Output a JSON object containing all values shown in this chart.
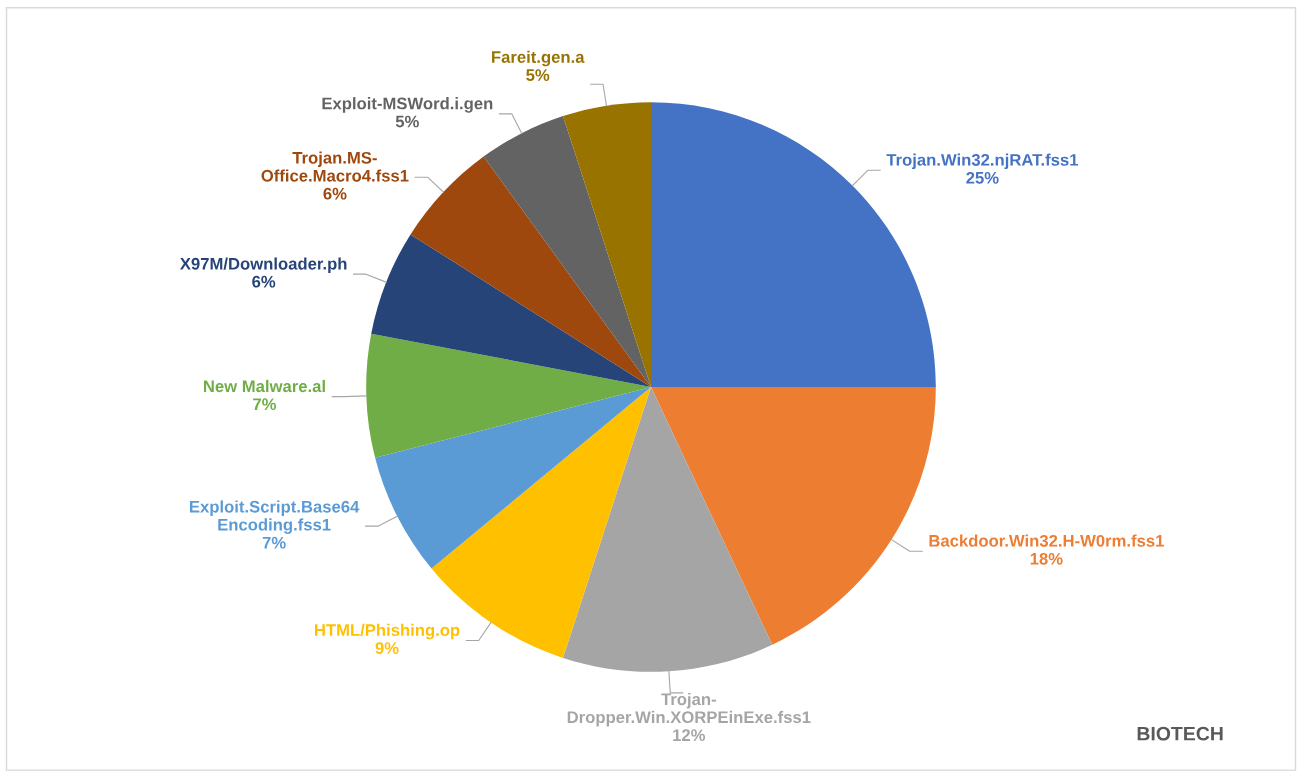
{
  "chart_data": {
    "type": "pie",
    "categories": [
      "Trojan.Win32.njRAT.fss1",
      "Backdoor.Win32.H-W0rm.fss1",
      "Trojan-\nDropper.Win.XORPEinExe.fss1",
      "HTML/Phishing.op",
      "Exploit.Script.Base64\nEncoding.fss1",
      "New Malware.al",
      "X97M/Downloader.ph",
      "Trojan.MS-\nOffice.Macro4.fss1",
      "Exploit-MSWord.i.gen",
      "Fareit.gen.a"
    ],
    "values": [
      25,
      18,
      12,
      9,
      7,
      7,
      6,
      6,
      5,
      5
    ],
    "colors": [
      "#4472c4",
      "#ed7d31",
      "#a5a5a5",
      "#ffc000",
      "#5b9bd5",
      "#70ad47",
      "#264478",
      "#9e480e",
      "#636363",
      "#997300"
    ],
    "value_labels": [
      "25%",
      "18%",
      "12%",
      "9%",
      "7%",
      "7%",
      "6%",
      "6%",
      "5%",
      "5%"
    ],
    "annotations": [
      "BIOTECH"
    ]
  }
}
